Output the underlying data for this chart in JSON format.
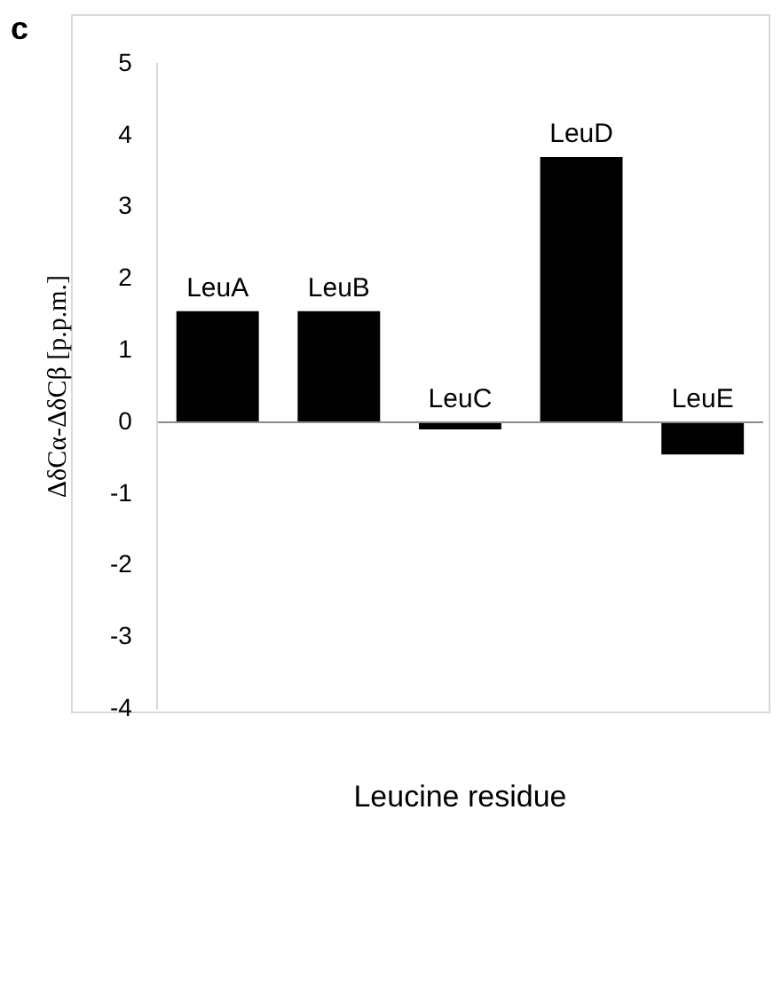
{
  "chart_data": {
    "type": "bar",
    "xlabel": "Leucine residue",
    "ylabel": "ΔδCα-ΔδCβ [p.p.m.]",
    "annotations": [
      "c"
    ],
    "categories": [
      "LeuA",
      "LeuB",
      "LeuC",
      "LeuD",
      "LeuE"
    ],
    "values": [
      1.55,
      1.55,
      -0.1,
      3.7,
      -0.45
    ],
    "color": "#000000",
    "ylim": [
      -4,
      5
    ],
    "yticks": [
      -4,
      -3,
      -2,
      -1,
      0,
      1,
      2,
      3,
      4,
      5
    ],
    "grid": false,
    "legend": false
  }
}
